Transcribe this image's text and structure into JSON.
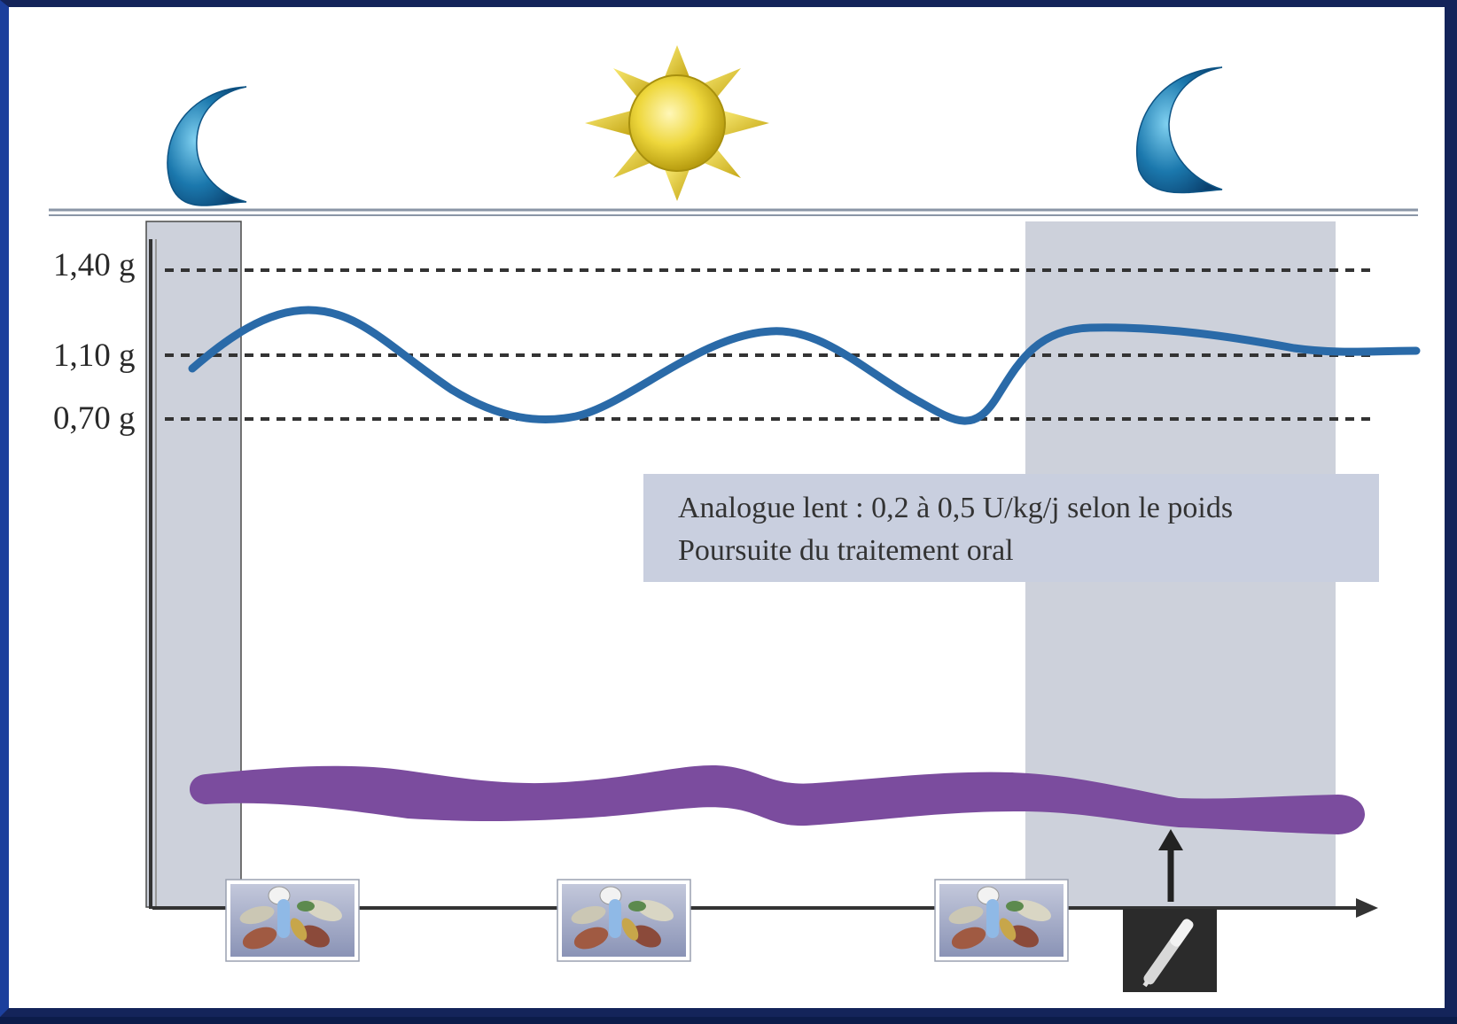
{
  "glucose_levels": [
    {
      "label": "1,40 g",
      "value": 1.4
    },
    {
      "label": "1,10 g",
      "value": 1.1
    },
    {
      "label": "0,70 g",
      "value": 0.7
    }
  ],
  "info_box": {
    "line1": "Analogue lent : 0,2 à 0,5 U/kg/j selon le poids",
    "line2": "Poursuite du traitement oral"
  },
  "icons": {
    "night_start": "crescent-moon-icon",
    "day": "sun-icon",
    "night_end": "crescent-moon-icon",
    "meal_pills": "pills-icon",
    "injection": "insulin-pen-icon"
  },
  "colors": {
    "glucose_curve": "#2a6aa8",
    "insulin_band": "#7b4c9e",
    "night_shading": "#cdd1db",
    "info_box": "#c9cfdf",
    "moon": "#1b78ad",
    "sun": "#e6cc2a",
    "pen_box": "#2b2b2b"
  },
  "glucose_curve_points": [
    [
      0,
      1.02
    ],
    [
      7,
      1.32
    ],
    [
      27,
      0.72
    ],
    [
      41,
      1.2
    ],
    [
      53,
      0.69
    ],
    [
      60,
      1.23
    ],
    [
      75,
      1.12
    ],
    [
      100,
      1.11
    ]
  ]
}
